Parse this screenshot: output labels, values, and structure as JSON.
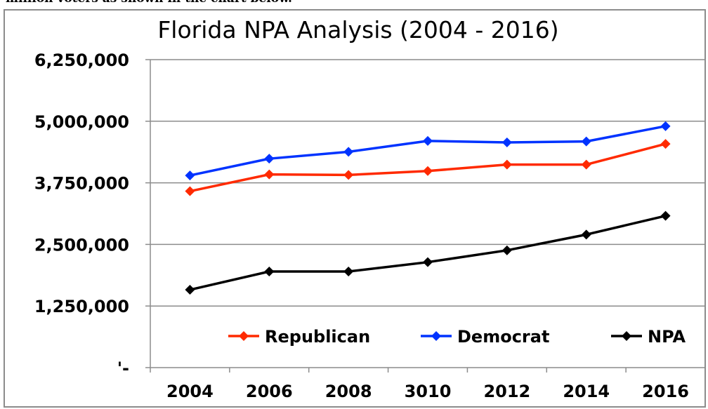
{
  "top_text": "million voters as shown in the chart below.",
  "chart_data": {
    "type": "line",
    "title": "Florida NPA Analysis (2004 - 2016)",
    "xlabel": "",
    "ylabel": "",
    "categories": [
      "2004",
      "2006",
      "2008",
      "3010",
      "2012",
      "2014",
      "2016"
    ],
    "y_ticks": [
      "'-",
      "1,250,000",
      "2,500,000",
      "3,750,000",
      "5,000,000",
      "6,250,000"
    ],
    "ylim": [
      0,
      6250000
    ],
    "grid": true,
    "legend_position": "bottom-inside",
    "series": [
      {
        "name": "Republican",
        "color": "#ff2a00",
        "values": [
          3580000,
          3920000,
          3910000,
          3990000,
          4120000,
          4120000,
          4540000
        ]
      },
      {
        "name": "Democrat",
        "color": "#0033ff",
        "values": [
          3900000,
          4240000,
          4380000,
          4600000,
          4570000,
          4590000,
          4900000
        ]
      },
      {
        "name": "NPA",
        "color": "#000000",
        "values": [
          1580000,
          1950000,
          1950000,
          2140000,
          2380000,
          2700000,
          3080000
        ]
      }
    ]
  }
}
